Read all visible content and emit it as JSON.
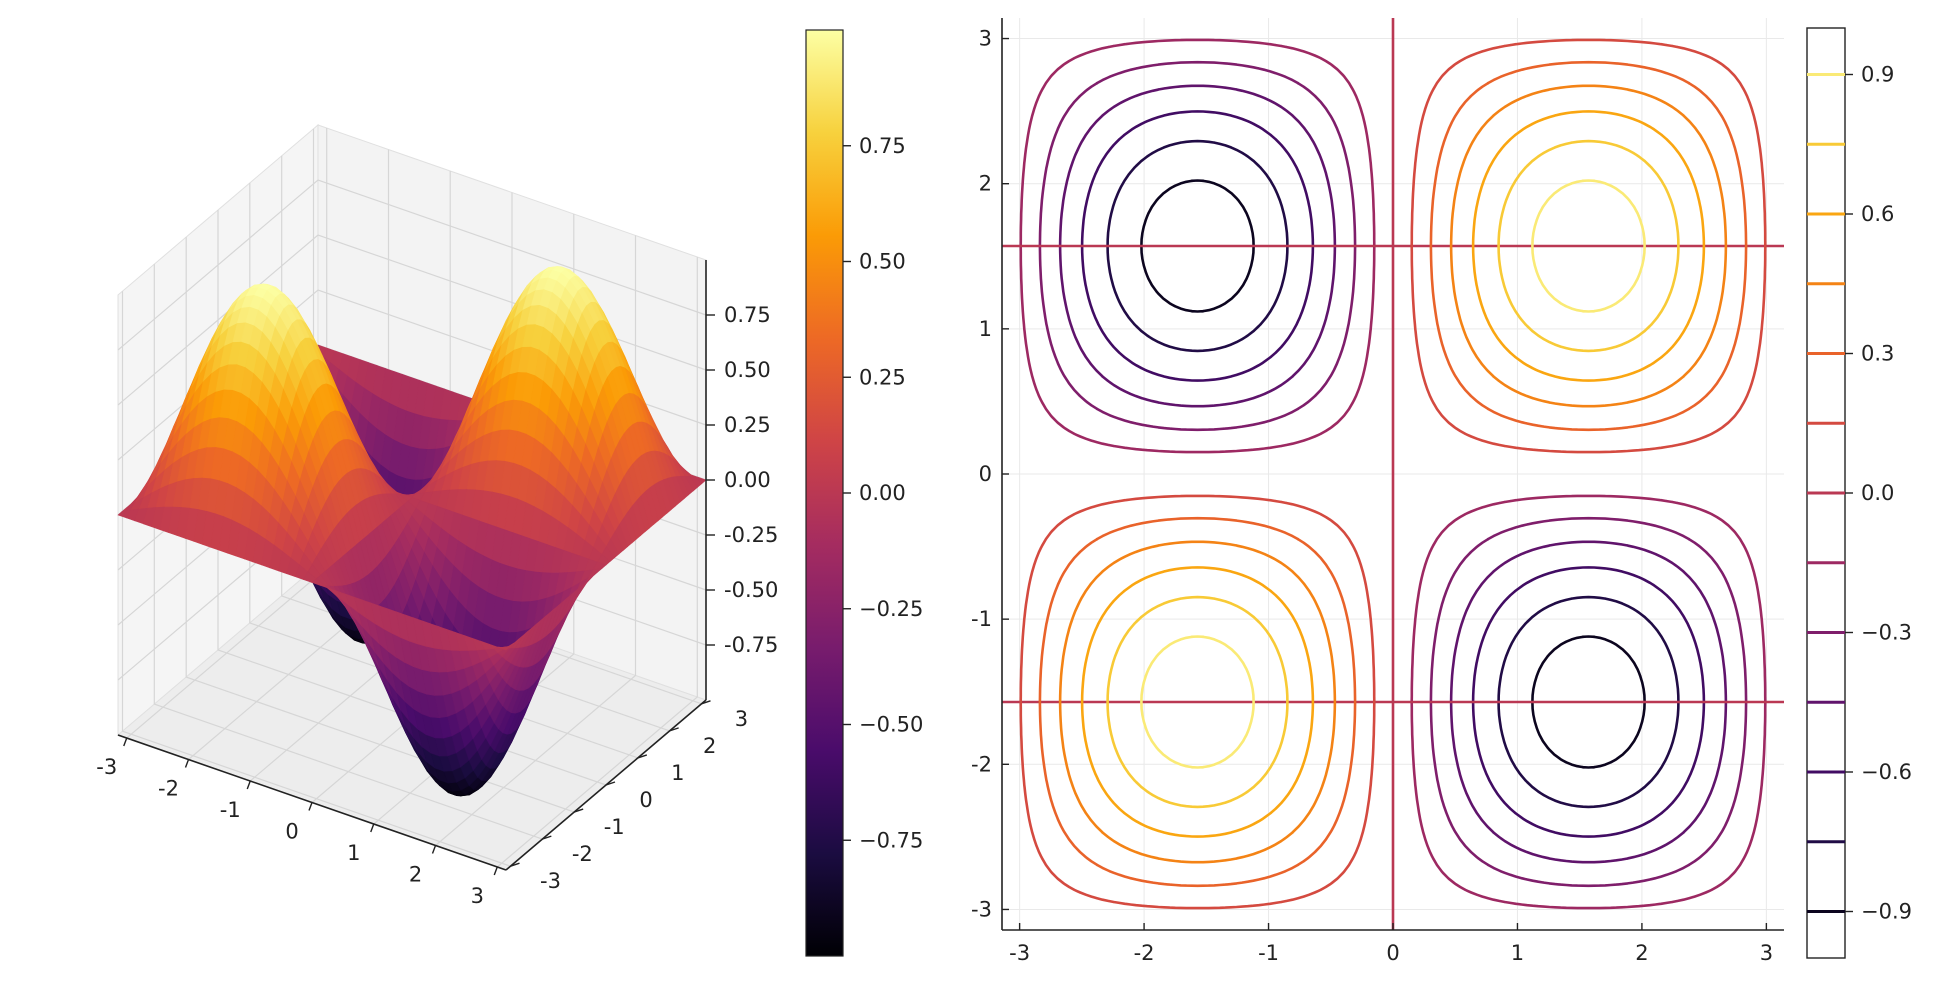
{
  "chart_data": [
    {
      "type": "surface",
      "function": "sin(x)*sin(y)",
      "x_range": [
        -3.14159,
        3.14159
      ],
      "y_range": [
        -3.14159,
        3.14159
      ],
      "z_range": [
        -1,
        1
      ],
      "x_ticks": [
        "-3",
        "-2",
        "-1",
        "0",
        "1",
        "2",
        "3"
      ],
      "y_ticks": [
        "-3",
        "-2",
        "-1",
        "0",
        "1",
        "2",
        "3"
      ],
      "z_ticks": [
        "-0.75",
        "-0.50",
        "-0.25",
        "0.00",
        "0.25",
        "0.50",
        "0.75"
      ],
      "z_tick_values": [
        -0.75,
        -0.5,
        -0.25,
        0,
        0.25,
        0.5,
        0.75
      ],
      "grid": true,
      "colormap": "inferno",
      "colormap_stops": [
        "#000004",
        "#1b0c41",
        "#4a0c6b",
        "#781c6d",
        "#a52c60",
        "#cf4446",
        "#ed6925",
        "#fb9b06",
        "#f7d13d",
        "#fcffa4"
      ],
      "colorbar": {
        "range": [
          -1,
          1
        ],
        "tick_values": [
          0.75,
          0.5,
          0.25,
          0,
          -0.25,
          -0.5,
          -0.75
        ],
        "tick_labels": [
          "0.75",
          "0.50",
          "0.25",
          "0.00",
          "−0.25",
          "−0.50",
          "−0.75"
        ]
      }
    },
    {
      "type": "contour",
      "function": "sin(x)*sin(y)",
      "x_range": [
        -3.14159,
        3.14159
      ],
      "y_range": [
        -3.14159,
        3.14159
      ],
      "x_ticks": [
        "-3",
        "-2",
        "-1",
        "0",
        "1",
        "2",
        "3"
      ],
      "y_ticks": [
        "3",
        "2",
        "1",
        "0",
        "-1",
        "-2",
        "-3"
      ],
      "levels": [
        -0.9,
        -0.75,
        -0.6,
        -0.45,
        -0.3,
        -0.15,
        0.0,
        0.15,
        0.3,
        0.45,
        0.6,
        0.75,
        0.9
      ],
      "grid": true,
      "colorbar": {
        "range": [
          -1,
          1
        ],
        "tick_values": [
          0.9,
          0.6,
          0.3,
          0.0,
          -0.3,
          -0.6,
          -0.9
        ],
        "tick_labels": [
          "0.9",
          "0.6",
          "0.3",
          "0.0",
          "−0.3",
          "−0.6",
          "−0.9"
        ]
      }
    }
  ]
}
